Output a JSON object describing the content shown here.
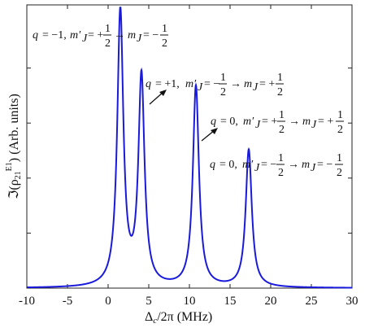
{
  "chart_data": {
    "type": "line",
    "title": "",
    "xlabel": "Δ_c/2π (MHz)",
    "ylabel": "ℑ(ρ₂₁^E1) (Arb. units)",
    "xlim": [
      -10,
      30
    ],
    "ylim": [
      0,
      1
    ],
    "grid": false,
    "x_ticks": [
      -10,
      -5,
      0,
      5,
      10,
      15,
      20,
      25,
      30
    ],
    "x_tick_labels": [
      "-10",
      "-5",
      "0",
      "5",
      "10",
      "15",
      "20",
      "25",
      "30"
    ],
    "y_ticks": [
      0.2,
      0.4,
      0.6,
      0.8
    ],
    "series": [
      {
        "color": "#1a1adc",
        "peaks": [
          {
            "center": 1.5,
            "height": 1.0,
            "width": 0.45
          },
          {
            "center": 4.1,
            "height": 0.76,
            "width": 0.45
          },
          {
            "center": 10.8,
            "height": 0.73,
            "width": 0.45
          },
          {
            "center": 17.3,
            "height": 0.5,
            "width": 0.45
          }
        ]
      }
    ],
    "annotations": [
      {
        "text": "q = −1, m′_J = +1/2 → m_J = −1/2"
      },
      {
        "text": "q = +1, m′_J = −1/2 → m_J = +1/2"
      },
      {
        "text": "q = 0, m′_J = +1/2 → m_J = +1/2"
      },
      {
        "text": "q = 0, m′_J = −1/2 → m_J = −1/2"
      }
    ]
  }
}
